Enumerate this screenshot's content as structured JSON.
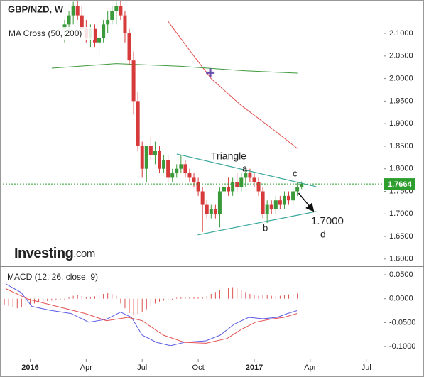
{
  "chart_data": [
    {
      "type": "candlestick",
      "title": "GBP/NZD, W",
      "indicator_label": "MA Cross (50, 200)",
      "brand": {
        "name": "Investing",
        "suffix": ".com"
      },
      "x": [
        8,
        9,
        10,
        11,
        12,
        13,
        14,
        15,
        16,
        17,
        18,
        19,
        20,
        21,
        22,
        23,
        24,
        25,
        26,
        27,
        28,
        29,
        30,
        31,
        32,
        33,
        34,
        35,
        36,
        37,
        38,
        39,
        40,
        41,
        42,
        43,
        44,
        45,
        46,
        47,
        48,
        49,
        50,
        51,
        52,
        53,
        54,
        55,
        56,
        57,
        58,
        59,
        60,
        61,
        62,
        63
      ],
      "open": [
        2.11,
        2.12,
        2.14,
        2.16,
        2.14,
        2.11,
        2.09,
        2.11,
        2.08,
        2.09,
        2.12,
        2.13,
        2.15,
        2.16,
        2.14,
        2.1,
        2.04,
        1.95,
        1.85,
        1.8,
        1.85,
        1.83,
        1.84,
        1.8,
        1.82,
        1.78,
        1.79,
        1.8,
        1.81,
        1.79,
        1.78,
        1.77,
        1.75,
        1.72,
        1.7,
        1.71,
        1.7,
        1.75,
        1.76,
        1.75,
        1.77,
        1.76,
        1.78,
        1.79,
        1.78,
        1.77,
        1.75,
        1.7,
        1.72,
        1.71,
        1.73,
        1.72,
        1.74,
        1.73,
        1.75,
        1.76
      ],
      "high": [
        2.13,
        2.15,
        2.17,
        2.18,
        2.16,
        2.13,
        2.12,
        2.12,
        2.1,
        2.13,
        2.15,
        2.16,
        2.17,
        2.18,
        2.15,
        2.11,
        2.06,
        1.97,
        1.86,
        1.85,
        1.87,
        1.86,
        1.85,
        1.83,
        1.83,
        1.8,
        1.81,
        1.83,
        1.82,
        1.8,
        1.79,
        1.78,
        1.76,
        1.73,
        1.72,
        1.72,
        1.76,
        1.77,
        1.78,
        1.78,
        1.79,
        1.79,
        1.8,
        1.8,
        1.79,
        1.78,
        1.76,
        1.73,
        1.73,
        1.74,
        1.74,
        1.75,
        1.75,
        1.76,
        1.77,
        1.772
      ],
      "low": [
        2.08,
        2.1,
        2.12,
        2.13,
        2.1,
        2.08,
        2.07,
        2.07,
        2.05,
        2.08,
        2.1,
        2.12,
        2.12,
        2.13,
        2.08,
        2.03,
        1.92,
        1.84,
        1.78,
        1.77,
        1.82,
        1.81,
        1.79,
        1.79,
        1.77,
        1.77,
        1.78,
        1.79,
        1.78,
        1.77,
        1.76,
        1.74,
        1.66,
        1.69,
        1.69,
        1.69,
        1.67,
        1.74,
        1.74,
        1.74,
        1.75,
        1.75,
        1.76,
        1.77,
        1.76,
        1.74,
        1.69,
        1.68,
        1.7,
        1.7,
        1.71,
        1.71,
        1.72,
        1.72,
        1.74,
        1.755
      ],
      "close": [
        2.12,
        2.14,
        2.16,
        2.14,
        2.11,
        2.09,
        2.11,
        2.08,
        2.09,
        2.12,
        2.13,
        2.15,
        2.16,
        2.14,
        2.1,
        2.04,
        1.95,
        1.85,
        1.8,
        1.85,
        1.83,
        1.84,
        1.8,
        1.82,
        1.78,
        1.79,
        1.8,
        1.81,
        1.79,
        1.78,
        1.77,
        1.75,
        1.72,
        1.7,
        1.71,
        1.7,
        1.75,
        1.76,
        1.75,
        1.77,
        1.76,
        1.78,
        1.79,
        1.78,
        1.77,
        1.75,
        1.7,
        1.72,
        1.71,
        1.73,
        1.72,
        1.74,
        1.73,
        1.75,
        1.76,
        1.7664
      ],
      "up_color": "#3a9a3a",
      "down_color": "#d63a3a",
      "moving_averages": [
        {
          "color": "#e35050",
          "x": [
            32,
            36,
            42,
            49,
            56,
            62
          ],
          "values": [
            2.127,
            2.075,
            2.0,
            1.94,
            1.89,
            1.845
          ]
        },
        {
          "color": "#3f9a3f",
          "x": [
            5,
            20,
            35,
            50,
            62
          ],
          "values": [
            2.023,
            2.033,
            2.027,
            2.017,
            2.012
          ]
        }
      ],
      "cross": {
        "x": 41.8,
        "value": 2.013,
        "color": "#6a4fb0"
      },
      "triangle": {
        "color": "#3aa89c",
        "upper": {
          "x": [
            34,
            66.4
          ],
          "values": [
            1.8327,
            1.7604
          ]
        },
        "lower": {
          "x": [
            38.9,
            66.4
          ],
          "values": [
            1.6535,
            1.7053
          ]
        }
      },
      "arrow": {
        "x": [
          62.3,
          65.6
        ],
        "values": [
          1.746,
          1.708
        ]
      },
      "last_price": {
        "value": 1.7664,
        "value_label": "1.7664",
        "color": "#2e9e2e"
      },
      "annotations": [
        "Triangle",
        "a",
        "b",
        "c",
        "1.7000",
        "d"
      ],
      "xlim": [
        -7,
        82
      ],
      "ylim": [
        1.584,
        2.174
      ],
      "yticks": [
        {
          "value": 2.1,
          "label": "2.1000"
        },
        {
          "value": 2.05,
          "label": "2.0500"
        },
        {
          "value": 2.0,
          "label": "2.0000"
        },
        {
          "value": 1.95,
          "label": "1.9500"
        },
        {
          "value": 1.9,
          "label": "1.9000"
        },
        {
          "value": 1.85,
          "label": "1.8500"
        },
        {
          "value": 1.8,
          "label": "1.8000"
        },
        {
          "value": 1.75,
          "label": "1.7500"
        },
        {
          "value": 1.7,
          "label": "1.7000"
        },
        {
          "value": 1.65,
          "label": "1.6500"
        },
        {
          "value": 1.6,
          "label": "1.6000"
        }
      ]
    },
    {
      "type": "macd",
      "title": "MACD (12, 26, close, 9)",
      "histogram": {
        "color": "#d9534f",
        "x": [
          -6,
          -5,
          -4,
          -3,
          -2,
          -1,
          0,
          1,
          2,
          3,
          4,
          5,
          6,
          7,
          8,
          9,
          10,
          11,
          12,
          13,
          14,
          15,
          16,
          17,
          18,
          19,
          20,
          21,
          22,
          23,
          24,
          25,
          26,
          27,
          28,
          29,
          30,
          31,
          32,
          33,
          34,
          35,
          36,
          37,
          38,
          39,
          40,
          41,
          42,
          43,
          44,
          45,
          46,
          47,
          48,
          49,
          50,
          51,
          52,
          53,
          54,
          55,
          56,
          57,
          58,
          59,
          60,
          61,
          62
        ],
        "values": [
          -0.012,
          -0.015,
          -0.018,
          -0.02,
          -0.018,
          -0.015,
          -0.012,
          -0.01,
          -0.008,
          -0.006,
          -0.005,
          -0.004,
          -0.003,
          -0.002,
          -0.002,
          0.004,
          0.006,
          0.008,
          0.006,
          0.004,
          0.003,
          0.005,
          0.008,
          0.01,
          0.012,
          0.01,
          0.006,
          -0.01,
          -0.02,
          -0.03,
          -0.035,
          -0.032,
          -0.028,
          -0.022,
          -0.015,
          -0.01,
          -0.006,
          -0.004,
          -0.003,
          -0.002,
          0.002,
          0.003,
          0.004,
          0.004,
          0.003,
          0.003,
          0.004,
          0.006,
          0.01,
          0.014,
          0.018,
          0.02,
          0.022,
          0.024,
          0.022,
          0.018,
          0.014,
          0.01,
          0.008,
          0.006,
          0.007,
          0.008,
          0.006,
          0.005,
          0.006,
          0.008,
          0.009,
          0.01,
          0.011
        ]
      },
      "series": [
        {
          "color": "#5a5ae6",
          "x": [
            -5.7,
            -2.1,
            0.4,
            4.5,
            9.5,
            13.6,
            17.7,
            21.0,
            23.5,
            26.0,
            29.3,
            32.6,
            35.8,
            40.8,
            44.1,
            47.4,
            50.7,
            54.0,
            57.3,
            59.7,
            61.9
          ],
          "values": [
            0.031,
            0.013,
            -0.016,
            -0.024,
            -0.031,
            -0.049,
            -0.043,
            -0.028,
            -0.039,
            -0.076,
            -0.091,
            -0.098,
            -0.091,
            -0.088,
            -0.076,
            -0.053,
            -0.039,
            -0.042,
            -0.039,
            -0.031,
            -0.025
          ]
        },
        {
          "color": "#e65050",
          "x": [
            -5.7,
            -0.4,
            6.2,
            12.8,
            17.7,
            22.7,
            26.0,
            30.9,
            35.8,
            40.8,
            45.7,
            49.0,
            52.3,
            55.6,
            58.9,
            61.9
          ],
          "values": [
            0.021,
            -0.001,
            -0.016,
            -0.031,
            -0.046,
            -0.039,
            -0.046,
            -0.076,
            -0.091,
            -0.093,
            -0.083,
            -0.064,
            -0.049,
            -0.043,
            -0.039,
            -0.031
          ]
        }
      ],
      "xlim": [
        -7,
        82
      ],
      "ylim": [
        -0.125,
        0.0663
      ],
      "yticks": [
        {
          "value": 0.05,
          "label": "0.0500"
        },
        {
          "value": 0.0,
          "label": "0.0000"
        },
        {
          "value": -0.05,
          "label": "-0.0500"
        },
        {
          "value": -0.1,
          "label": "-0.1000"
        }
      ],
      "xticks": [
        {
          "value": 0,
          "label": "2016"
        },
        {
          "value": 13,
          "label": "Apr"
        },
        {
          "value": 26,
          "label": "Jul"
        },
        {
          "value": 39,
          "label": "Oct"
        },
        {
          "value": 52,
          "label": "2017"
        },
        {
          "value": 65,
          "label": "Apr"
        },
        {
          "value": 78,
          "label": "Jul"
        }
      ]
    }
  ]
}
